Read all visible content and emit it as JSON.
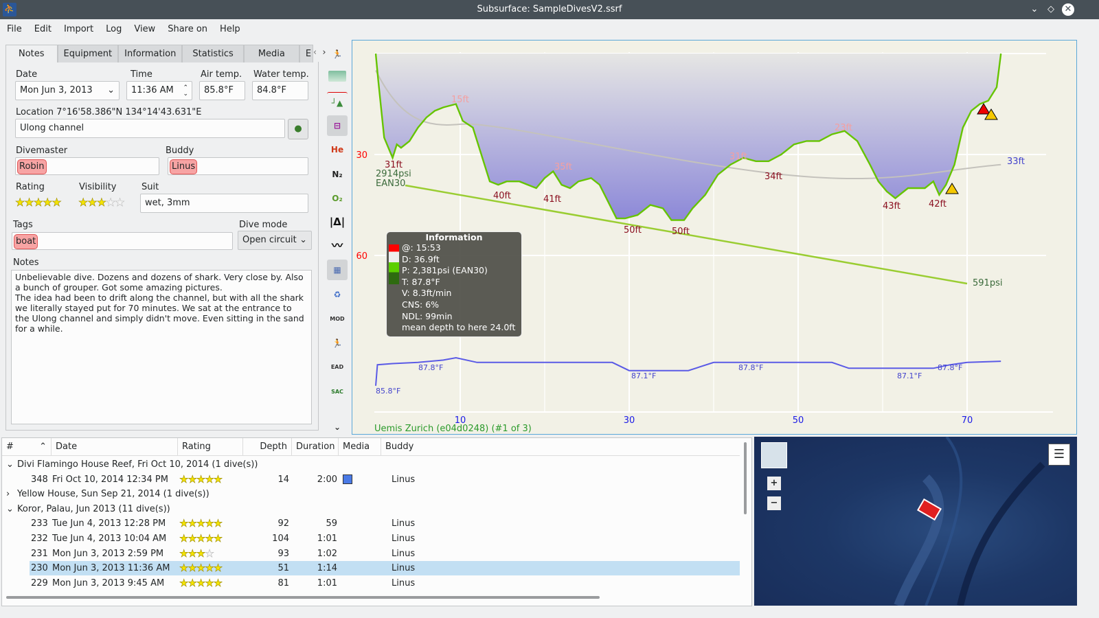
{
  "window": {
    "title": "Subsurface: SampleDivesV2.ssrf"
  },
  "menu": [
    "File",
    "Edit",
    "Import",
    "Log",
    "View",
    "Share on",
    "Help"
  ],
  "tabs": [
    "Notes",
    "Equipment",
    "Information",
    "Statistics",
    "Media",
    "E"
  ],
  "notes": {
    "date_label": "Date",
    "date": "Mon Jun 3, 2013",
    "time_label": "Time",
    "time": "11:36 AM",
    "airtemp_label": "Air temp.",
    "airtemp": "85.8°F",
    "watertemp_label": "Water temp.",
    "watertemp": "84.8°F",
    "location_label": "Location 7°16'58.386\"N 134°14'43.631\"E",
    "location": "Ulong channel",
    "divemaster_label": "Divemaster",
    "divemaster": "Robin",
    "buddy_label": "Buddy",
    "buddy": "Linus",
    "rating_label": "Rating",
    "rating": 5,
    "visibility_label": "Visibility",
    "visibility": 3,
    "suit_label": "Suit",
    "suit": "wet, 3mm",
    "tags_label": "Tags",
    "tags": "boat",
    "divemode_label": "Dive mode",
    "divemode": "Open circuit",
    "notes_label": "Notes",
    "notes_text": "Unbelievable dive. Dozens and dozens of shark. Very close by. Also a bunch of grouper. Got some amazing pictures.\nThe idea had been to drift along the channel, but with all the shark we literally stayed put for 70 minutes. We sat at the entrance to the Ulong channel and simply didn't move. Even sitting in the sand for a while."
  },
  "toolbar_icons": [
    "profile-dive-icon",
    "ceiling-icon",
    "deco-icon",
    "calc-ceiling-icon",
    "he-icon",
    "n2-icon",
    "o2-icon",
    "ruler-icon",
    "scale-icon",
    "media-icon",
    "tank-change-icon",
    "mod-icon",
    "ndl-icon",
    "ead-icon",
    "sac-icon",
    "chevron-down-icon"
  ],
  "toolbar_text": {
    "he": "He",
    "n2": "N₂",
    "o2": "O₂",
    "mod": "MOD",
    "ead": "EAD",
    "sac": "SAC"
  },
  "profile": {
    "depth_ticks": [
      "30",
      "60"
    ],
    "time_ticks": [
      "10",
      "30",
      "50",
      "70"
    ],
    "depth_labels": [
      "31ft",
      "15ft",
      "40ft",
      "41ft",
      "35ft",
      "50ft",
      "50ft",
      "31ft",
      "34ft",
      "23ft",
      "43ft",
      "42ft",
      "33ft"
    ],
    "start_pressure": "2914psi",
    "gas": "EAN30",
    "end_pressure": "591psi",
    "temp_labels": [
      "85.8°F",
      "87.8°F",
      "87.1°F",
      "87.8°F",
      "87.1°F",
      "87.8°F"
    ],
    "computer": "Uemis Zurich (e04d0248) (#1 of 3)",
    "points": [
      [
        0,
        0
      ],
      [
        0.3,
        8
      ],
      [
        1,
        25
      ],
      [
        2,
        31
      ],
      [
        2.5,
        27
      ],
      [
        3,
        28
      ],
      [
        4,
        26
      ],
      [
        5,
        22
      ],
      [
        6,
        19
      ],
      [
        7,
        17
      ],
      [
        8,
        16
      ],
      [
        9.5,
        15
      ],
      [
        10.3,
        20
      ],
      [
        11.5,
        22
      ],
      [
        12.5,
        30
      ],
      [
        13.5,
        38
      ],
      [
        14.5,
        39
      ],
      [
        15.5,
        38
      ],
      [
        17,
        38
      ],
      [
        18,
        39
      ],
      [
        19,
        40
      ],
      [
        20,
        37
      ],
      [
        21,
        35
      ],
      [
        22,
        39
      ],
      [
        23,
        40
      ],
      [
        24,
        38
      ],
      [
        25.5,
        37
      ],
      [
        26.5,
        39
      ],
      [
        27.5,
        44
      ],
      [
        28.5,
        49
      ],
      [
        29.5,
        49
      ],
      [
        31,
        48
      ],
      [
        32.5,
        45
      ],
      [
        34,
        46
      ],
      [
        35,
        49.5
      ],
      [
        36.5,
        49.5
      ],
      [
        37.5,
        46
      ],
      [
        39,
        42
      ],
      [
        40.5,
        36
      ],
      [
        42,
        33
      ],
      [
        43.5,
        31
      ],
      [
        45,
        32
      ],
      [
        46.5,
        32
      ],
      [
        48,
        30
      ],
      [
        49.5,
        27
      ],
      [
        51,
        26
      ],
      [
        52.5,
        26
      ],
      [
        54,
        24
      ],
      [
        55.5,
        23
      ],
      [
        57,
        26
      ],
      [
        58.5,
        33
      ],
      [
        59.5,
        38
      ],
      [
        60.5,
        41
      ],
      [
        61.5,
        43
      ],
      [
        63,
        40
      ],
      [
        65,
        40
      ],
      [
        66,
        38
      ],
      [
        66.7,
        42
      ],
      [
        67.5,
        39
      ],
      [
        68.5,
        33
      ],
      [
        69.5,
        22
      ],
      [
        70.5,
        17
      ],
      [
        71.5,
        15
      ],
      [
        72.5,
        14
      ],
      [
        73.5,
        10
      ],
      [
        74,
        0
      ]
    ],
    "temps": [
      [
        0,
        85.8
      ],
      [
        0.2,
        87.6
      ],
      [
        2,
        87.7
      ],
      [
        5,
        87.8
      ],
      [
        8,
        88.0
      ],
      [
        9.5,
        88.2
      ],
      [
        12,
        87.8
      ],
      [
        20,
        87.8
      ],
      [
        24,
        87.8
      ],
      [
        28,
        87.8
      ],
      [
        30,
        87.1
      ],
      [
        37,
        87.1
      ],
      [
        40,
        87.8
      ],
      [
        54,
        87.8
      ],
      [
        56,
        87.3
      ],
      [
        60,
        87.3
      ],
      [
        66,
        87.3
      ],
      [
        68,
        87.6
      ],
      [
        70,
        87.8
      ],
      [
        74,
        87.9
      ]
    ],
    "info": {
      "title": "Information",
      "lines": [
        "@: 15:53",
        "D: 36.9ft",
        "P: 2,381psi (EAN30)",
        "T: 87.8°F",
        "V: 8.3ft/min",
        "CNS: 6%",
        "NDL: 99min",
        "mean depth to here 24.0ft"
      ]
    }
  },
  "divelist": {
    "columns": [
      "#",
      "Date",
      "Rating",
      "Depth",
      "Duration",
      "Media",
      "Buddy"
    ],
    "rows": [
      {
        "trip": "Divi Flamingo House Reef, Fri Oct 10, 2014 (1 dive(s))",
        "open": true
      },
      {
        "num": "348",
        "date": "Fri Oct 10, 2014 12:34 PM",
        "rating": 5,
        "depth": "14",
        "duration": "2:00",
        "media": true,
        "buddy": "Linus"
      },
      {
        "trip": "Yellow House, Sun Sep 21, 2014 (1 dive(s))",
        "open": false
      },
      {
        "trip": "Koror, Palau, Jun 2013 (11 dive(s))",
        "open": true
      },
      {
        "num": "233",
        "date": "Tue Jun 4, 2013 12:28 PM",
        "rating": 5,
        "depth": "92",
        "duration": "59",
        "buddy": "Linus"
      },
      {
        "num": "232",
        "date": "Tue Jun 4, 2013 10:04 AM",
        "rating": 5,
        "depth": "104",
        "duration": "1:01",
        "buddy": "Linus"
      },
      {
        "num": "231",
        "date": "Mon Jun 3, 2013 2:59 PM",
        "rating": 3,
        "depth": "93",
        "duration": "1:02",
        "buddy": "Linus"
      },
      {
        "num": "230",
        "date": "Mon Jun 3, 2013 11:36 AM",
        "rating": 5,
        "depth": "51",
        "duration": "1:14",
        "buddy": "Linus",
        "selected": true
      },
      {
        "num": "229",
        "date": "Mon Jun 3, 2013 9:45 AM",
        "rating": 5,
        "depth": "81",
        "duration": "1:01",
        "buddy": "Linus"
      }
    ]
  },
  "map": {
    "zoom_in": "+",
    "zoom_out": "−"
  }
}
